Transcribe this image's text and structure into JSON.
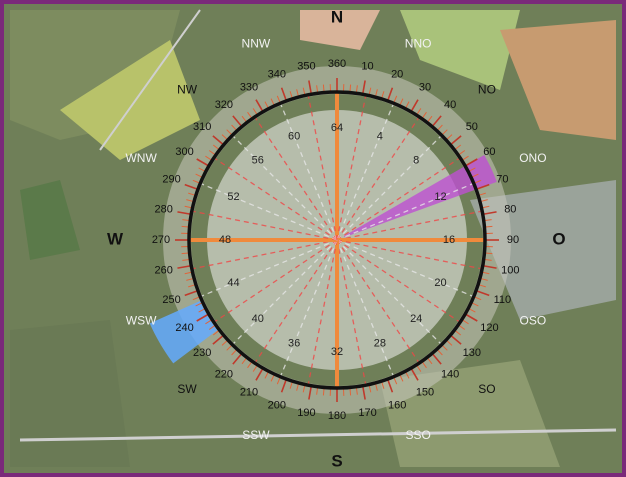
{
  "compass": {
    "points": [
      "N",
      "NNO",
      "NO",
      "ONO",
      "O",
      "OSO",
      "SO",
      "SSO",
      "S",
      "SSW",
      "SW",
      "WSW",
      "W",
      "WNW",
      "NW",
      "NNW"
    ]
  },
  "degrees": [
    10,
    20,
    30,
    40,
    50,
    60,
    70,
    80,
    90,
    100,
    110,
    120,
    130,
    140,
    150,
    160,
    170,
    180,
    190,
    200,
    210,
    220,
    230,
    240,
    250,
    260,
    270,
    280,
    290,
    300,
    310,
    320,
    330,
    340,
    350,
    360
  ],
  "inner": [
    4,
    8,
    12,
    16,
    20,
    24,
    28,
    32,
    36,
    40,
    44,
    48,
    52,
    56,
    60,
    64
  ]
}
